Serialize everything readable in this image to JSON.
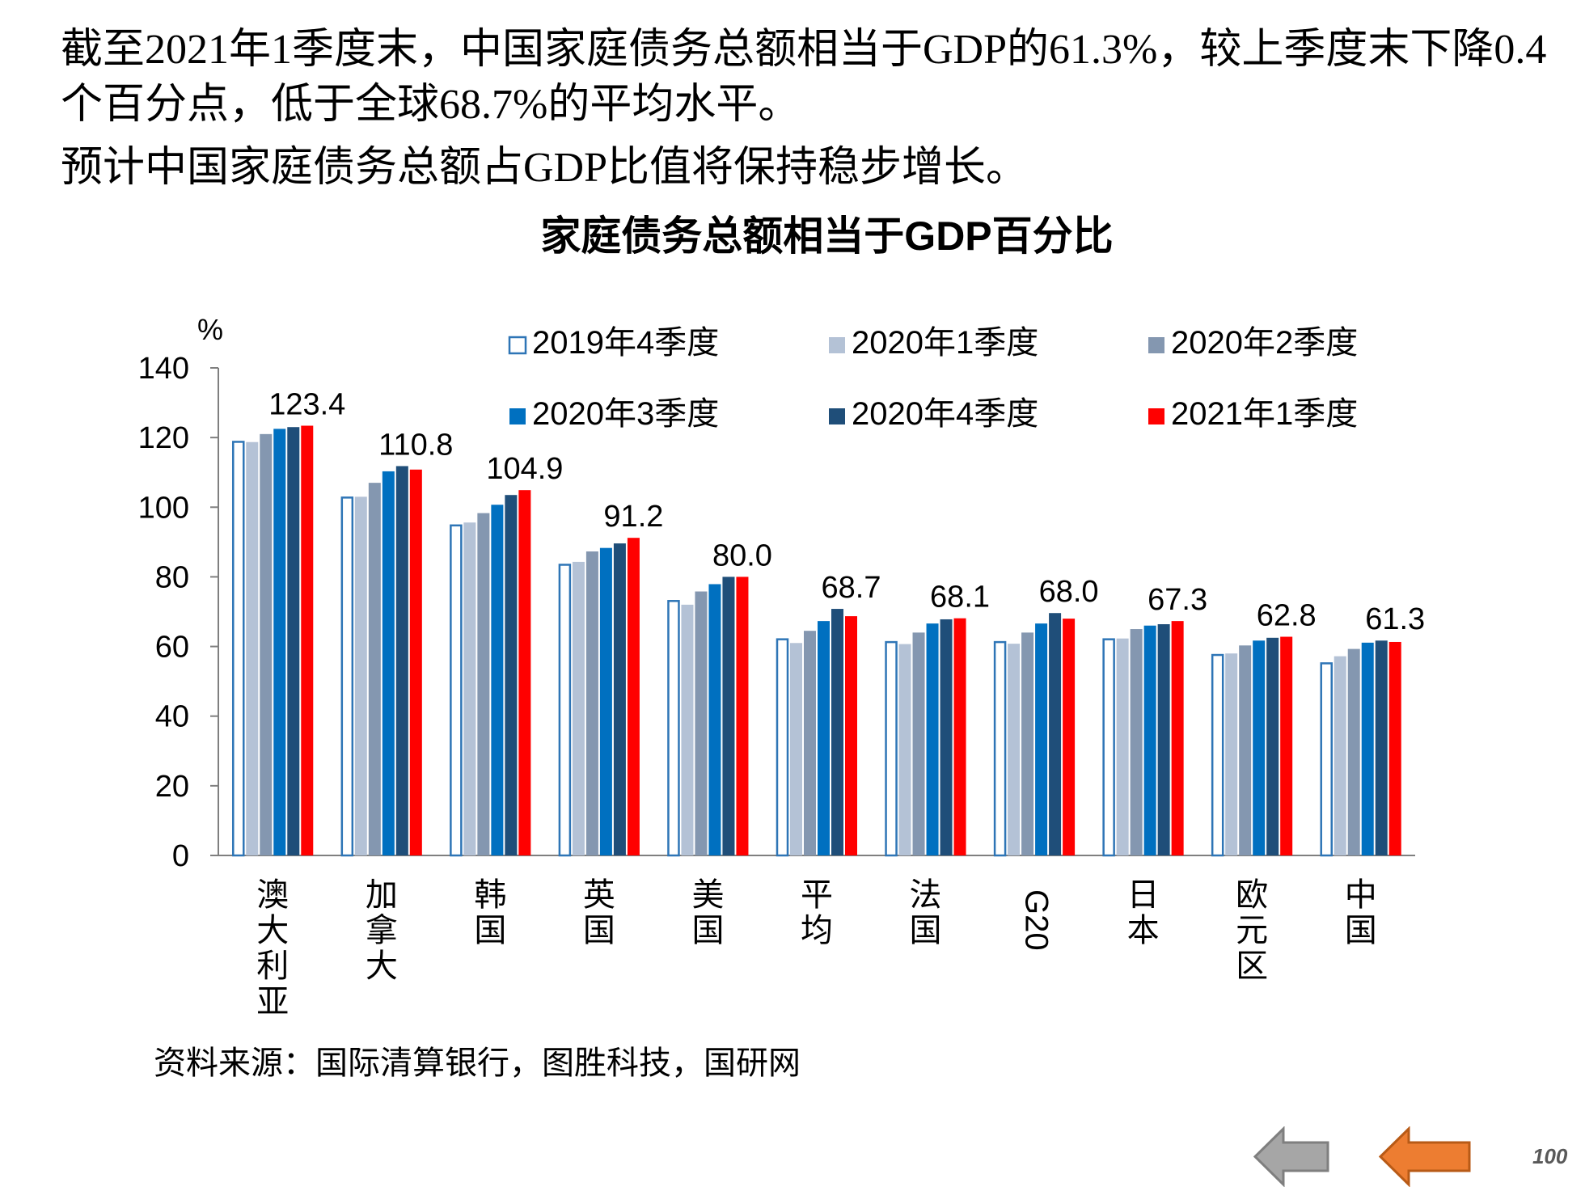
{
  "text": {
    "paragraph_1": "截至2021年1季度末，中国家庭债务总额相当于GDP的61.3%，较上季度末下降0.4个百分点，低于全球68.7%的平均水平。",
    "paragraph_2": "预计中国家庭债务总额占GDP比值将保持稳步增长。",
    "source": "资料来源：国际清算银行，图胜科技，国研网",
    "page_number": "100"
  },
  "nav": {
    "back_icon": "left-arrow-icon",
    "forward_icon": "left-arrow-icon"
  },
  "colors": {
    "series": [
      "#ffffff",
      "#b4c2d6",
      "#8497b0",
      "#0070c0",
      "#1f4e79",
      "#ff0000"
    ],
    "hollow_outline": "#2e75b6",
    "nav_back": "#a6a6a6",
    "nav_forward": "#ed7d31"
  },
  "chart_data": {
    "type": "bar",
    "title": "家庭债务总额相当于GDP百分比",
    "ylabel": "%",
    "ylim": [
      0,
      140
    ],
    "yticks": [
      0,
      20,
      40,
      60,
      80,
      100,
      120,
      140
    ],
    "grid": false,
    "legend_position": "top-right",
    "categories": [
      "澳大利亚",
      "加拿大",
      "韩国",
      "英国",
      "美国",
      "平均",
      "法国",
      "G20",
      "日本",
      "欧元区",
      "中国"
    ],
    "series": [
      {
        "name": "2019年4季度",
        "values": [
          119.0,
          103.0,
          95.0,
          83.7,
          73.3,
          62.3,
          61.5,
          61.5,
          62.3,
          57.8,
          55.4
        ]
      },
      {
        "name": "2020年1季度",
        "values": [
          118.7,
          103.0,
          95.6,
          84.3,
          72.0,
          61.0,
          60.7,
          60.8,
          62.3,
          58.0,
          57.2
        ]
      },
      {
        "name": "2020年2季度",
        "values": [
          121.0,
          107.0,
          98.3,
          87.3,
          75.8,
          64.5,
          64.0,
          64.0,
          65.0,
          60.3,
          59.3
        ]
      },
      {
        "name": "2020年3季度",
        "values": [
          122.5,
          110.3,
          100.7,
          88.3,
          77.9,
          67.3,
          66.6,
          66.6,
          66.0,
          61.7,
          61.1
        ]
      },
      {
        "name": "2020年4季度",
        "values": [
          123.0,
          111.8,
          103.5,
          89.6,
          80.0,
          70.8,
          67.8,
          69.6,
          66.4,
          62.5,
          61.7
        ]
      },
      {
        "name": "2021年1季度",
        "values": [
          123.4,
          110.8,
          104.9,
          91.2,
          80.0,
          68.7,
          68.1,
          68.0,
          67.3,
          62.8,
          61.3
        ]
      }
    ],
    "data_labels": [
      "123.4",
      "110.8",
      "104.9",
      "91.2",
      "80.0",
      "68.7",
      "68.1",
      "68.0",
      "67.3",
      "62.8",
      "61.3"
    ]
  }
}
